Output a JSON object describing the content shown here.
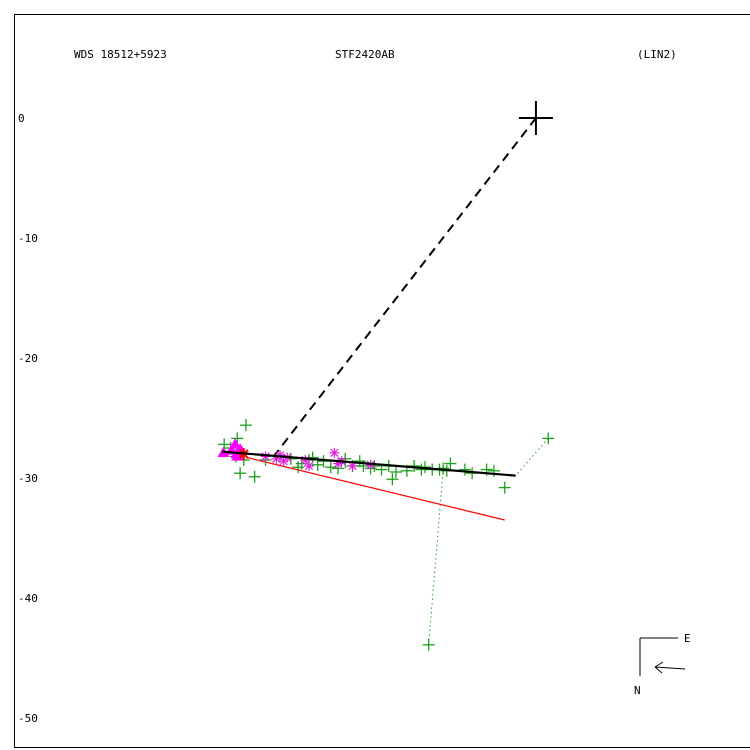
{
  "header": {
    "wds": "WDS 18512+5923",
    "name": "STF2420AB",
    "solution": "(LIN2)"
  },
  "compass": {
    "east": "E",
    "north": "N"
  },
  "colors": {
    "axes": "#000000",
    "observations": "#1aa01a",
    "speckle": "#e020e0",
    "triangles": "#ff00ff",
    "fit_line": "#000000",
    "ref_line": "#ff0000",
    "residual": "#1aa01a"
  },
  "chart_data": {
    "type": "scatter",
    "title": "STF2420AB",
    "ylim": [
      -51.5,
      9
    ],
    "xlim": [
      -2,
      59
    ],
    "y_ticks": [
      0,
      -10,
      -20,
      -30,
      -40,
      -50
    ],
    "grid": false,
    "primary": {
      "x": 43.3,
      "y": 0
    },
    "fit_line": {
      "x": [
        0,
        40.5
      ],
      "y": [
        -27.8,
        -29.8
      ]
    },
    "ref_line": {
      "x": [
        3.5,
        39
      ],
      "y": [
        -28.3,
        -33.5
      ]
    },
    "dashed_line": {
      "x": [
        43.3,
        7
      ],
      "y": [
        0,
        -28.3
      ]
    },
    "observations": {
      "x": [
        0.3,
        1.2,
        1.6,
        2.1,
        2.8,
        3.3,
        1.9,
        3.0,
        4.5,
        6.0,
        8.0,
        9.5,
        10.5,
        11.0,
        12.0,
        12.5,
        13.2,
        14.0,
        15.0,
        16.0,
        17.0,
        18.0,
        19.0,
        20.5,
        21.0,
        22.0,
        23.0,
        23.5,
        24.0,
        25.5,
        17.0,
        31.5,
        19.5,
        26.5,
        27.5,
        28.0,
        29.0,
        30.0,
        30.5,
        31.0,
        33.5,
        37.5,
        39.0,
        45.0,
        34.5,
        36.5,
        28.5,
        2.5
      ],
      "y": [
        -27.2,
        -27.5,
        -27.9,
        -26.7,
        -27.9,
        -25.6,
        -28.2,
        -28.5,
        -29.9,
        -28.5,
        -28.2,
        -28.4,
        -29.1,
        -28.8,
        -28.5,
        -28.3,
        -28.9,
        -28.6,
        -29.1,
        -29.2,
        -28.4,
        -29.0,
        -28.6,
        -29.2,
        -29.0,
        -29.3,
        -29.0,
        -30.1,
        -29.5,
        -29.4,
        -28.7,
        -28.8,
        -29.0,
        -29.0,
        -29.3,
        -29.1,
        -29.3,
        -29.3,
        -29.2,
        -29.4,
        -29.3,
        -29.4,
        -30.8,
        -26.7,
        -29.6,
        -29.3,
        -43.9,
        -29.6
      ],
      "marker": "plus"
    },
    "speckle": {
      "x": [
        6.0,
        7.5,
        8.0,
        8.5,
        9.0,
        11.5,
        12.0,
        15.5,
        16.0,
        16.5,
        18.0,
        20.5
      ],
      "y": [
        -28.2,
        -28.4,
        -28.1,
        -28.6,
        -28.3,
        -28.5,
        -29.0,
        -27.9,
        -28.8,
        -28.6,
        -29.0,
        -28.9
      ],
      "marker": "asterisk"
    },
    "triangles": {
      "x": [
        0.2,
        1.3,
        1.8,
        2.0,
        2.3,
        2.5,
        2.1
      ],
      "y": [
        -27.9,
        -27.7,
        -27.2,
        -28.0,
        -27.9,
        -27.6,
        -28.2
      ],
      "marker": "triangle"
    },
    "star_point": {
      "x": 3.0,
      "y": -28.0
    },
    "residual_links": [
      {
        "from": [
          45.0,
          -26.7
        ],
        "to": [
          40.5,
          -29.8
        ]
      },
      {
        "from": [
          28.5,
          -43.9
        ],
        "to": [
          30.5,
          -29.4
        ]
      }
    ]
  }
}
